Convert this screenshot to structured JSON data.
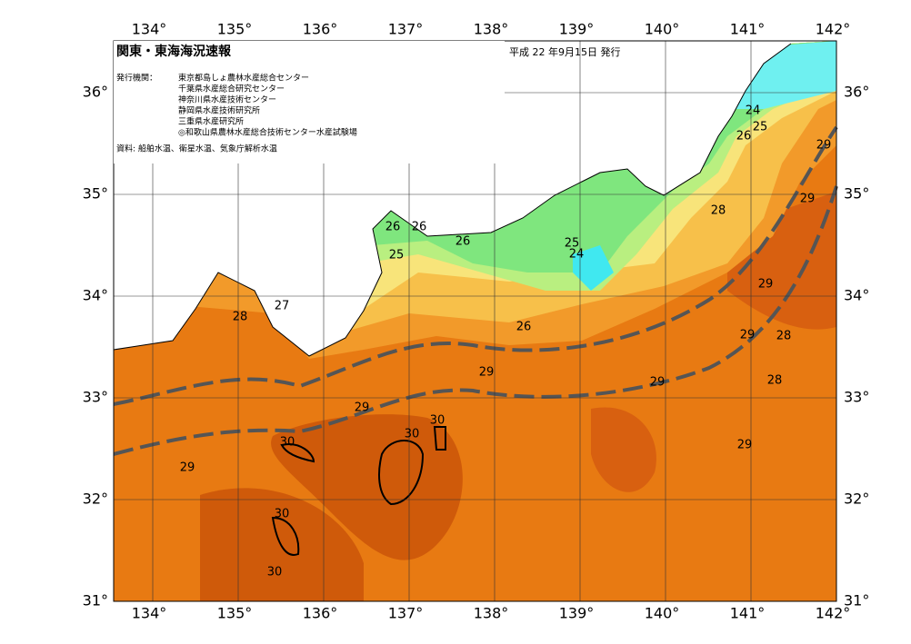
{
  "header": {
    "title": "関東・東海海況速報",
    "date": "平成 22 年9月15日 発行"
  },
  "issuers": {
    "label": "発行機関：",
    "list": [
      "東京都島しょ農林水産総合センター",
      "千葉県水産総合研究センター",
      "神奈川県水産技術センター",
      "静岡県水産技術研究所",
      "三重県水産研究所",
      "◎和歌山県農林水産総合技術センター水産試験場"
    ]
  },
  "source": "資料: 船舶水温、衛星水温、気象庁解析水温",
  "map": {
    "lon_ticks": [
      {
        "value": 134,
        "label": "134°"
      },
      {
        "value": 135,
        "label": "135°"
      },
      {
        "value": 136,
        "label": "136°"
      },
      {
        "value": 137,
        "label": "137°"
      },
      {
        "value": 138,
        "label": "138°"
      },
      {
        "value": 139,
        "label": "139°"
      },
      {
        "value": 140,
        "label": "140°"
      },
      {
        "value": 141,
        "label": "141°"
      },
      {
        "value": 142,
        "label": "142°"
      }
    ],
    "lat_ticks": [
      {
        "value": 31,
        "label": "31°"
      },
      {
        "value": 32,
        "label": "32°"
      },
      {
        "value": 33,
        "label": "33°"
      },
      {
        "value": 34,
        "label": "34°"
      },
      {
        "value": 35,
        "label": "35°"
      },
      {
        "value": 36,
        "label": "36°"
      }
    ],
    "contour_labels": [
      "24",
      "25",
      "26",
      "29",
      "29",
      "28",
      "26",
      "26",
      "26",
      "25",
      "25",
      "24",
      "27",
      "28",
      "29",
      "26",
      "29",
      "28",
      "29",
      "28",
      "29",
      "29",
      "30",
      "30",
      "30",
      "29",
      "29",
      "30",
      "30"
    ]
  }
}
